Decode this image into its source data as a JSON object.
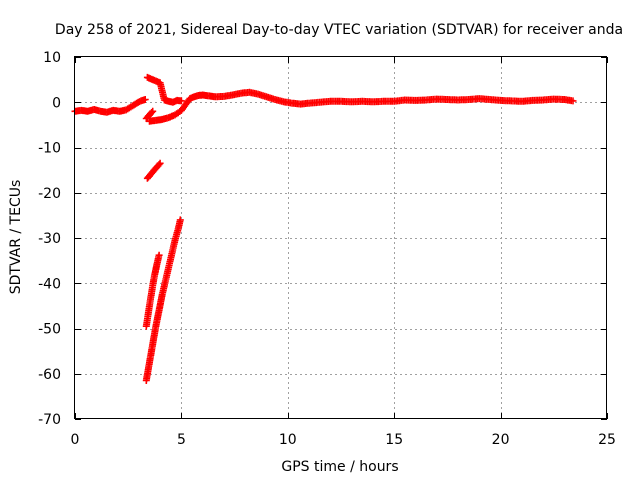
{
  "chart_data": {
    "type": "scatter",
    "title": "Day 258 of 2021, Sidereal Day-to-day VTEC variation (SDTVAR) for receiver anda",
    "xlabel": "GPS time / hours",
    "ylabel": "SDTVAR / TECUs",
    "xlim": [
      0,
      25
    ],
    "ylim": [
      -70,
      10
    ],
    "xticks": [
      0,
      5,
      10,
      15,
      20,
      25
    ],
    "yticks": [
      10,
      0,
      -10,
      -20,
      -30,
      -40,
      -50,
      -60,
      -70
    ],
    "grid": true,
    "marker": "plus",
    "series_color": "#ff0000",
    "series": [
      {
        "points": [
          [
            0.0,
            -2.0
          ],
          [
            0.3,
            -1.8
          ],
          [
            0.6,
            -2.0
          ],
          [
            0.9,
            -1.6
          ],
          [
            1.2,
            -2.0
          ],
          [
            1.5,
            -2.2
          ],
          [
            1.8,
            -1.8
          ],
          [
            2.1,
            -2.0
          ],
          [
            2.4,
            -1.7
          ],
          [
            2.7,
            -0.8
          ],
          [
            2.9,
            -0.2
          ],
          [
            3.1,
            0.3
          ],
          [
            3.3,
            0.6
          ]
        ]
      },
      {
        "points": [
          [
            3.5,
            -4.2
          ],
          [
            3.8,
            -4.0
          ],
          [
            4.1,
            -3.8
          ],
          [
            4.4,
            -3.4
          ],
          [
            4.7,
            -2.8
          ],
          [
            5.0,
            -1.8
          ],
          [
            5.2,
            -0.5
          ],
          [
            5.4,
            0.8
          ],
          [
            5.6,
            1.2
          ],
          [
            5.8,
            1.5
          ],
          [
            6.0,
            1.6
          ],
          [
            6.3,
            1.4
          ],
          [
            6.6,
            1.2
          ],
          [
            7.0,
            1.3
          ],
          [
            7.4,
            1.6
          ],
          [
            7.8,
            2.0
          ],
          [
            8.2,
            2.2
          ],
          [
            8.6,
            1.8
          ],
          [
            9.0,
            1.2
          ],
          [
            9.4,
            0.6
          ],
          [
            9.8,
            0.1
          ],
          [
            10.2,
            -0.2
          ],
          [
            10.6,
            -0.4
          ],
          [
            11.0,
            -0.2
          ],
          [
            11.5,
            0.0
          ],
          [
            12.0,
            0.2
          ],
          [
            12.5,
            0.2
          ],
          [
            13.0,
            0.1
          ],
          [
            13.5,
            0.2
          ],
          [
            14.0,
            0.1
          ],
          [
            14.5,
            0.2
          ],
          [
            15.0,
            0.2
          ],
          [
            15.5,
            0.5
          ],
          [
            16.0,
            0.4
          ],
          [
            16.5,
            0.5
          ],
          [
            17.0,
            0.7
          ],
          [
            17.5,
            0.6
          ],
          [
            18.0,
            0.5
          ],
          [
            18.5,
            0.6
          ],
          [
            19.0,
            0.8
          ],
          [
            19.5,
            0.6
          ],
          [
            20.0,
            0.4
          ],
          [
            20.5,
            0.3
          ],
          [
            21.0,
            0.2
          ],
          [
            21.5,
            0.4
          ],
          [
            22.0,
            0.5
          ],
          [
            22.5,
            0.7
          ],
          [
            23.0,
            0.6
          ],
          [
            23.4,
            0.3
          ]
        ]
      },
      {
        "points": [
          [
            3.4,
            5.5
          ],
          [
            3.6,
            5.1
          ],
          [
            3.8,
            4.7
          ],
          [
            4.0,
            4.3
          ],
          [
            4.2,
            0.5
          ],
          [
            4.4,
            0.2
          ],
          [
            4.6,
            0.0
          ],
          [
            4.8,
            0.4
          ],
          [
            5.0,
            0.3
          ]
        ]
      },
      {
        "points": [
          [
            3.35,
            -3.6
          ],
          [
            3.5,
            -2.8
          ],
          [
            3.65,
            -2.0
          ]
        ]
      },
      {
        "points": [
          [
            3.4,
            -16.8
          ],
          [
            3.55,
            -16.0
          ],
          [
            3.7,
            -15.1
          ],
          [
            3.85,
            -14.3
          ],
          [
            4.0,
            -13.5
          ]
        ]
      },
      {
        "points": [
          [
            3.35,
            -61.5
          ],
          [
            3.5,
            -57.5
          ],
          [
            3.65,
            -53.5
          ],
          [
            3.8,
            -49.5
          ],
          [
            3.95,
            -46.0
          ],
          [
            4.1,
            -42.5
          ],
          [
            4.25,
            -39.5
          ],
          [
            4.4,
            -36.5
          ],
          [
            4.55,
            -33.5
          ],
          [
            4.7,
            -30.5
          ],
          [
            4.85,
            -28.0
          ],
          [
            4.95,
            -26.0
          ]
        ]
      },
      {
        "points": [
          [
            3.35,
            -49.5
          ],
          [
            3.45,
            -46.5
          ],
          [
            3.55,
            -43.5
          ],
          [
            3.65,
            -40.5
          ],
          [
            3.75,
            -38.0
          ],
          [
            3.85,
            -35.8
          ],
          [
            3.95,
            -33.8
          ]
        ]
      }
    ]
  }
}
